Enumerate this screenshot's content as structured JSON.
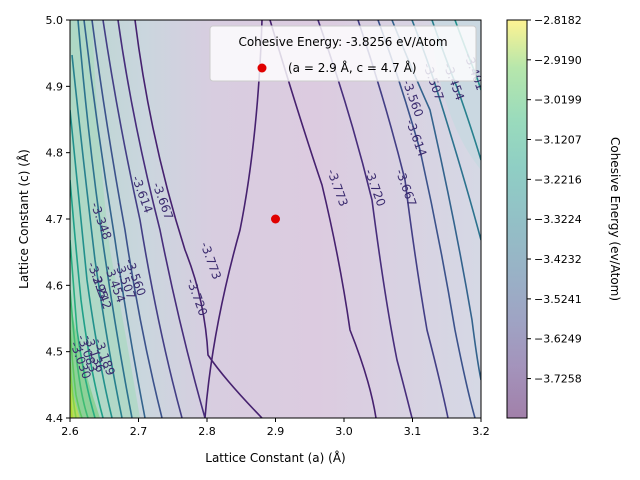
{
  "chart_data": {
    "type": "contour",
    "title": "",
    "xlabel": "Lattice Constant (a) (Å)",
    "ylabel": "Lattice Constant (c) (Å)",
    "xlim": [
      2.6,
      3.2
    ],
    "ylim": [
      4.4,
      5.0
    ],
    "x_ticks": [
      "2.6",
      "2.7",
      "2.8",
      "2.9",
      "3.0",
      "3.1",
      "3.2"
    ],
    "y_ticks": [
      "4.4",
      "4.5",
      "4.6",
      "4.7",
      "4.8",
      "4.9",
      "5.0"
    ],
    "colorbar": {
      "label": "Cohesive Energy (ev/Atom)",
      "colormap": "viridis",
      "range": [
        -3.8256,
        -2.8182
      ],
      "ticks": [
        "−2.8182",
        "−2.9190",
        "−3.0199",
        "−3.1207",
        "−3.2216",
        "−3.3224",
        "−3.4232",
        "−3.5241",
        "−3.6249",
        "−3.7258"
      ]
    },
    "minimum_point": {
      "a": 2.9,
      "c": 4.7,
      "energy": -3.8256,
      "color": "#e00000"
    },
    "legend": {
      "title": "Cohesive Energy: -3.8256 eV/Atom",
      "entries": [
        {
          "label": "(a = 2.9 Å, c = 4.7 Å)",
          "marker": "red-dot"
        }
      ],
      "placement": "top-right"
    },
    "contour_labels": [
      {
        "text": "-3.773",
        "a": 2.8,
        "c": 4.635
      },
      {
        "text": "-3.773",
        "a": 2.985,
        "c": 4.745
      },
      {
        "text": "-3.720",
        "a": 2.78,
        "c": 4.58
      },
      {
        "text": "-3.720",
        "a": 3.04,
        "c": 4.745
      },
      {
        "text": "-3.667",
        "a": 2.73,
        "c": 4.725
      },
      {
        "text": "-3.667",
        "a": 3.085,
        "c": 4.745
      },
      {
        "text": "-3.614",
        "a": 2.7,
        "c": 4.735
      },
      {
        "text": "-3.614",
        "a": 3.1,
        "c": 4.82
      },
      {
        "text": "-3.560",
        "a": 2.69,
        "c": 4.61
      },
      {
        "text": "-3.560",
        "a": 3.095,
        "c": 4.88
      },
      {
        "text": "-3.507",
        "a": 2.675,
        "c": 4.605
      },
      {
        "text": "-3.507",
        "a": 3.125,
        "c": 4.905
      },
      {
        "text": "-3.454",
        "a": 2.66,
        "c": 4.6
      },
      {
        "text": "-3.454",
        "a": 3.155,
        "c": 4.905
      },
      {
        "text": "-3.401",
        "a": 3.185,
        "c": 4.92
      },
      {
        "text": "-3.348",
        "a": 2.64,
        "c": 4.695
      },
      {
        "text": "-3.295",
        "a": 2.635,
        "c": 4.605
      },
      {
        "text": "-3.242",
        "a": 2.64,
        "c": 4.59
      },
      {
        "text": "-3.189",
        "a": 2.645,
        "c": 4.49
      },
      {
        "text": "-3.136",
        "a": 2.63,
        "c": 4.495
      },
      {
        "text": "-3.083",
        "a": 2.62,
        "c": 4.495
      },
      {
        "text": "-3.030",
        "a": 2.61,
        "c": 4.485
      }
    ]
  }
}
